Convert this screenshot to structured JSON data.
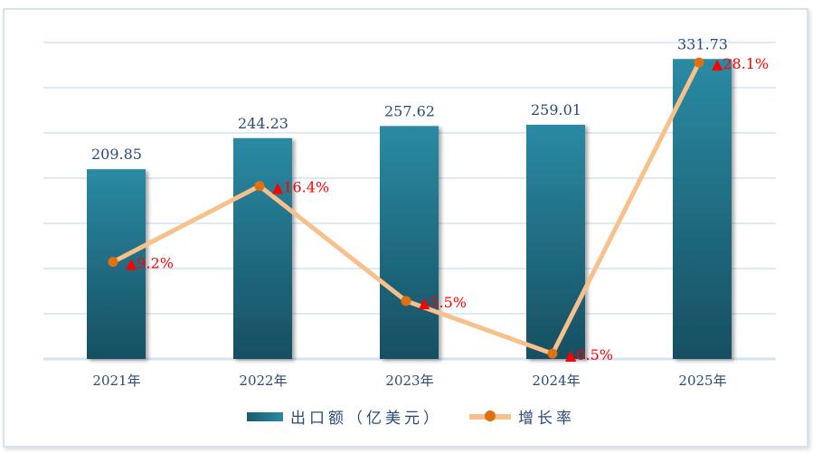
{
  "chart_data": {
    "type": "bar",
    "categories": [
      "2021年",
      "2022年",
      "2023年",
      "2024年",
      "2025年"
    ],
    "series": [
      {
        "name": "出口额（亿美元）",
        "type": "bar",
        "axis": "left",
        "values": [
          209.85,
          244.23,
          257.62,
          259.01,
          331.73
        ],
        "labels": [
          "209.85",
          "244.23",
          "257.62",
          "259.01",
          "331.73"
        ]
      },
      {
        "name": "增长率",
        "type": "line",
        "axis": "right",
        "values": [
          9.2,
          16.4,
          5.5,
          0.5,
          28.1
        ],
        "labels": [
          "9.2%",
          "16.4%",
          "5.5%",
          "0.5%",
          "28.1%"
        ]
      }
    ],
    "ylim": [
      0,
      350
    ],
    "y2lim": [
      0,
      30
    ],
    "grid": true,
    "legend_placement": "bottom",
    "colors": {
      "bar_top": "#2a8aa3",
      "bar_bottom": "#174f61",
      "line": "#f8c08a",
      "marker": "#e07010",
      "growth_label": "#ff0000",
      "value_label": "#2a4a7a",
      "grid": "#d6e3f3"
    }
  }
}
